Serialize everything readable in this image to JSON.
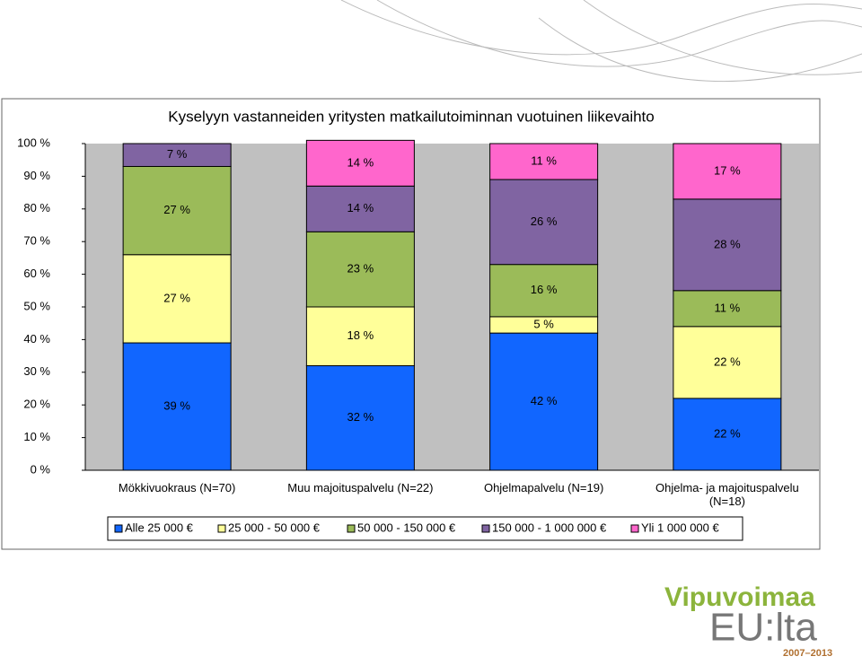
{
  "chart_data": {
    "type": "stacked_bar",
    "title": "Kyselyyn vastanneiden yritysten matkailutoiminnan vuotuinen liikevaihto",
    "categories": [
      "Mökkivuokraus (N=70)",
      "Muu majoituspalvelu (N=22)",
      "Ohjelmapalvelu (N=19)",
      "Ohjelma- ja majoituspalvelu (N=18)"
    ],
    "series": [
      {
        "name": "Alle 25 000 €",
        "color": "#1166ff",
        "values": [
          39,
          32,
          42,
          22
        ],
        "value_labels": [
          "39 %",
          "32 %",
          "42 %",
          "22 %"
        ]
      },
      {
        "name": "25 000 - 50 000 €",
        "color": "#ffff99",
        "values": [
          27,
          18,
          5,
          22
        ],
        "value_labels": [
          "27 %",
          "18 %",
          "5 %",
          "22 %"
        ]
      },
      {
        "name": "50 000 - 150 000 €",
        "color": "#9bbb59",
        "values": [
          27,
          23,
          16,
          11
        ],
        "value_labels": [
          "27 %",
          "23 %",
          "16 %",
          "11 %"
        ]
      },
      {
        "name": "150 000 - 1 000 000 €",
        "color": "#8064a2",
        "values": [
          7,
          14,
          26,
          28
        ],
        "value_labels": [
          "7 %",
          "14 %",
          "26 %",
          "28 %"
        ]
      },
      {
        "name": "Yli 1 000 000 €",
        "color": "#ff66cc",
        "values": [
          null,
          14,
          11,
          17
        ],
        "value_labels": [
          null,
          "14 %",
          "11 %",
          "17 %"
        ]
      }
    ],
    "ylim": [
      0,
      100
    ],
    "yticks": [
      {
        "value": 0,
        "label": "0 %"
      },
      {
        "value": 10,
        "label": "10 %"
      },
      {
        "value": 20,
        "label": "20 %"
      },
      {
        "value": 30,
        "label": "30 %"
      },
      {
        "value": 40,
        "label": "40 %"
      },
      {
        "value": 50,
        "label": "50 %"
      },
      {
        "value": 60,
        "label": "60 %"
      },
      {
        "value": 70,
        "label": "70 %"
      },
      {
        "value": 80,
        "label": "80 %"
      },
      {
        "value": 90,
        "label": "90 %"
      },
      {
        "value": 100,
        "label": "100 %"
      }
    ],
    "grid": false,
    "legend": "bottom"
  },
  "logo": {
    "name": "Vipuvoimaa",
    "sub": "EU:lta",
    "years": "2007–2013"
  }
}
